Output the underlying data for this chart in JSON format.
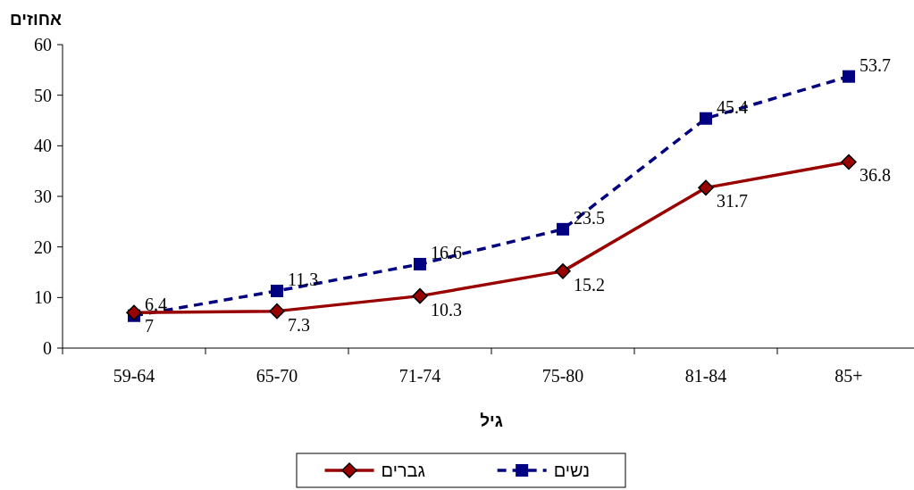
{
  "chart_data": {
    "type": "line",
    "ylabel": "אחוזים",
    "xlabel": "גיל",
    "categories": [
      "59-64",
      "65-70",
      "71-74",
      "75-80",
      "81-84",
      "85+"
    ],
    "series": [
      {
        "name": "נשים",
        "color": "#000080",
        "values": [
          6.4,
          11.3,
          16.6,
          23.5,
          45.4,
          53.7
        ],
        "marker": "square",
        "line_style": "dashed"
      },
      {
        "name": "גברים",
        "color": "#990000",
        "values": [
          7,
          7.3,
          10.3,
          15.2,
          31.7,
          36.8
        ],
        "marker": "diamond",
        "line_style": "solid"
      }
    ],
    "ylim": [
      0,
      60
    ],
    "yticks": [
      0,
      10,
      20,
      30,
      40,
      50,
      60
    ],
    "grid": false,
    "legend": "bottom",
    "data_labels": true
  }
}
